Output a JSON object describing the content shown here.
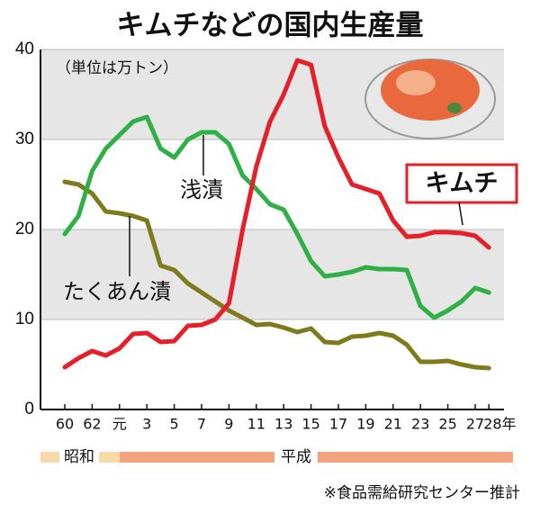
{
  "chart_data": {
    "type": "line",
    "title": "キムチなどの国内生産量",
    "subtitle": "（単位は万トン）",
    "categories": [
      "60",
      null,
      "62",
      null,
      "元",
      null,
      "3",
      null,
      "5",
      null,
      "7",
      null,
      "9",
      null,
      "11",
      null,
      "13",
      null,
      "15",
      null,
      "17",
      null,
      "19",
      null,
      "21",
      null,
      "23",
      null,
      "25",
      null,
      "27",
      "28年"
    ],
    "series": [
      {
        "name": "キムチ",
        "color": "#e4202a",
        "values": [
          4.7,
          5.7,
          6.5,
          6.0,
          6.8,
          8.4,
          8.5,
          7.5,
          7.6,
          9.3,
          9.4,
          10.0,
          11.8,
          20.0,
          27.0,
          32.0,
          35.0,
          38.8,
          38.3,
          31.5,
          28.0,
          25.0,
          24.5,
          24.0,
          21.0,
          19.2,
          19.3,
          19.7,
          19.7,
          19.6,
          19.3,
          18.0
        ]
      },
      {
        "name": "浅漬",
        "color": "#2fb044",
        "values": [
          19.5,
          21.5,
          26.5,
          29.0,
          30.5,
          32.0,
          32.5,
          29.0,
          28.0,
          30.0,
          30.8,
          30.8,
          29.5,
          26.0,
          24.5,
          22.8,
          22.2,
          19.5,
          16.5,
          14.8,
          15.0,
          15.3,
          15.8,
          15.6,
          15.6,
          15.5,
          11.5,
          10.2,
          11.0,
          12.0,
          13.5,
          13.0
        ]
      },
      {
        "name": "たくあん漬",
        "color": "#7f7a1c",
        "values": [
          25.3,
          25.0,
          24.0,
          22.0,
          21.8,
          21.5,
          21.0,
          16.0,
          15.5,
          14.0,
          13.0,
          12.0,
          11.0,
          10.2,
          9.4,
          9.5,
          9.1,
          8.6,
          9.0,
          7.5,
          7.4,
          8.1,
          8.2,
          8.5,
          8.2,
          7.2,
          5.3,
          5.3,
          5.4,
          5.0,
          4.7,
          4.6
        ]
      }
    ],
    "ylim": [
      0,
      40
    ],
    "yticks": [
      0,
      10,
      20,
      30,
      40
    ],
    "grid": true,
    "eras": [
      "昭和",
      "平成"
    ],
    "note": "※食品需給研究センター推計"
  }
}
